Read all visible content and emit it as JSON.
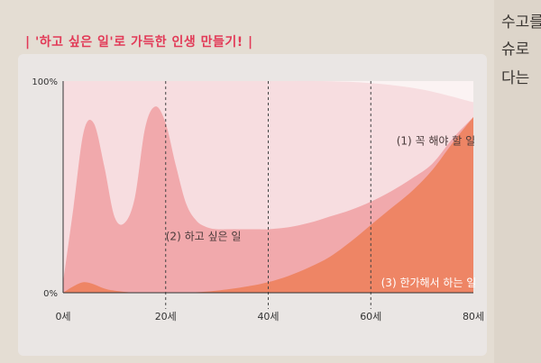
{
  "side_text": [
    "수고를",
    "슈로",
    "다는"
  ],
  "chart_data": {
    "type": "area",
    "title": "'하고 싶은 일'로 가득한 인생 만들기!",
    "xlabel": "",
    "ylabel": "",
    "x_ticks": [
      "0세",
      "20세",
      "40세",
      "60세",
      "80세"
    ],
    "y_ticks": [
      "100%",
      "0%"
    ],
    "xlim": [
      0,
      80
    ],
    "ylim": [
      0,
      100
    ],
    "grid": "dashed vertical at 20, 40, 60",
    "series": [
      {
        "name": "(1) 꼭 해야 할 일",
        "color": "#f7dde0",
        "x": [
          0,
          10,
          20,
          30,
          40,
          50,
          60,
          70,
          80
        ],
        "y": [
          100,
          100,
          100,
          100,
          100,
          100,
          99,
          96,
          90
        ]
      },
      {
        "name": "(2) 하고 싶은 일",
        "color": "#f1a9ac",
        "x": [
          0,
          2,
          4,
          6,
          8,
          10,
          12,
          14,
          16,
          18,
          20,
          22,
          24,
          26,
          28,
          30,
          32,
          34,
          36,
          38,
          40,
          44,
          48,
          52,
          56,
          60,
          64,
          68,
          72,
          76,
          80
        ],
        "y": [
          5,
          40,
          76,
          80,
          60,
          36,
          33,
          45,
          78,
          88,
          80,
          60,
          42,
          34,
          31,
          30,
          30,
          30,
          30,
          30,
          30,
          31,
          33,
          36,
          39,
          43,
          48,
          54,
          61,
          73,
          83
        ]
      },
      {
        "name": "(3) 한가해서 하는 일",
        "color": "#ee8565",
        "x": [
          0,
          2,
          4,
          6,
          8,
          10,
          14,
          18,
          24,
          30,
          36,
          40,
          44,
          48,
          52,
          56,
          60,
          64,
          68,
          72,
          76,
          80
        ],
        "y": [
          0,
          3,
          5,
          4,
          2,
          1,
          0,
          0,
          0,
          1,
          3,
          5,
          8,
          12,
          17,
          24,
          32,
          40,
          48,
          58,
          71,
          83
        ]
      }
    ]
  }
}
